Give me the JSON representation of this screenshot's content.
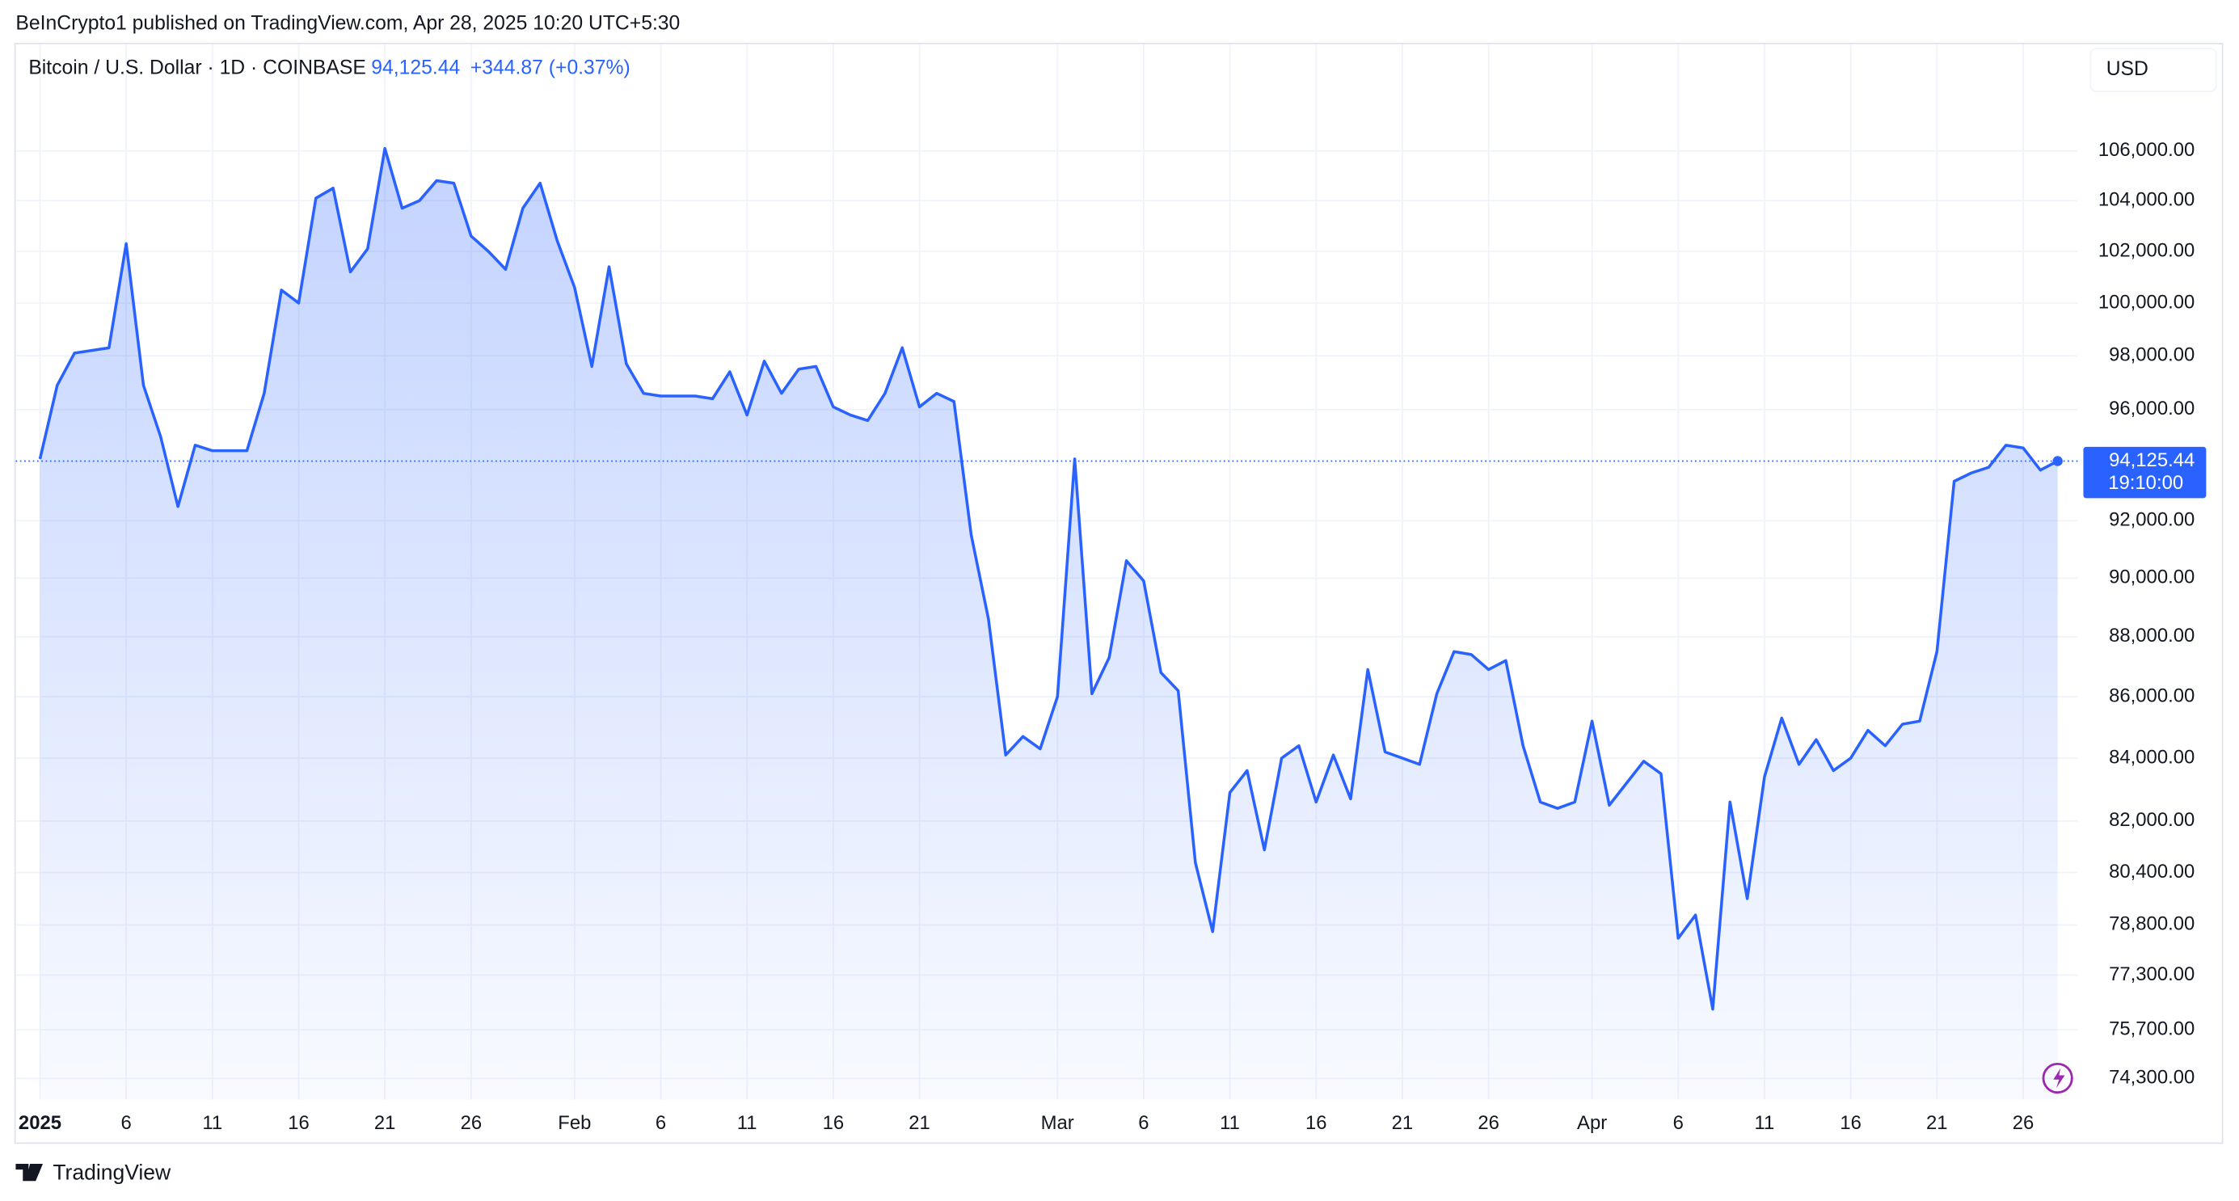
{
  "header": {
    "published": "BeInCrypto1 published on TradingView.com, Apr 28, 2025 10:20 UTC+5:30",
    "brand": "TradingView"
  },
  "chart_data": {
    "type": "line",
    "symbol": "Bitcoin / U.S. Dollar · 1D · COINBASE",
    "legend_price": "94,125.44",
    "legend_change": "+344.87 (+0.37%)",
    "currency": "USD",
    "last_price_label": "94,125.44",
    "countdown": "19:10:00",
    "color": "#2962ff",
    "log_scale": true,
    "grid": true,
    "x": [
      "2025-01-01",
      "2025-01-02",
      "2025-01-03",
      "2025-01-04",
      "2025-01-05",
      "2025-01-06",
      "2025-01-07",
      "2025-01-08",
      "2025-01-09",
      "2025-01-10",
      "2025-01-11",
      "2025-01-12",
      "2025-01-13",
      "2025-01-14",
      "2025-01-15",
      "2025-01-16",
      "2025-01-17",
      "2025-01-18",
      "2025-01-19",
      "2025-01-20",
      "2025-01-21",
      "2025-01-22",
      "2025-01-23",
      "2025-01-24",
      "2025-01-25",
      "2025-01-26",
      "2025-01-27",
      "2025-01-28",
      "2025-01-29",
      "2025-01-30",
      "2025-01-31",
      "2025-02-01",
      "2025-02-02",
      "2025-02-03",
      "2025-02-04",
      "2025-02-05",
      "2025-02-06",
      "2025-02-07",
      "2025-02-08",
      "2025-02-09",
      "2025-02-10",
      "2025-02-11",
      "2025-02-12",
      "2025-02-13",
      "2025-02-14",
      "2025-02-15",
      "2025-02-16",
      "2025-02-17",
      "2025-02-18",
      "2025-02-19",
      "2025-02-20",
      "2025-02-21",
      "2025-02-22",
      "2025-02-23",
      "2025-02-24",
      "2025-02-25",
      "2025-02-26",
      "2025-02-27",
      "2025-02-28",
      "2025-03-01",
      "2025-03-02",
      "2025-03-03",
      "2025-03-04",
      "2025-03-05",
      "2025-03-06",
      "2025-03-07",
      "2025-03-08",
      "2025-03-09",
      "2025-03-10",
      "2025-03-11",
      "2025-03-12",
      "2025-03-13",
      "2025-03-14",
      "2025-03-15",
      "2025-03-16",
      "2025-03-17",
      "2025-03-18",
      "2025-03-19",
      "2025-03-20",
      "2025-03-21",
      "2025-03-22",
      "2025-03-23",
      "2025-03-24",
      "2025-03-25",
      "2025-03-26",
      "2025-03-27",
      "2025-03-28",
      "2025-03-29",
      "2025-03-30",
      "2025-03-31",
      "2025-04-01",
      "2025-04-02",
      "2025-04-03",
      "2025-04-04",
      "2025-04-05",
      "2025-04-06",
      "2025-04-07",
      "2025-04-08",
      "2025-04-09",
      "2025-04-10",
      "2025-04-11",
      "2025-04-12",
      "2025-04-13",
      "2025-04-14",
      "2025-04-15",
      "2025-04-16",
      "2025-04-17",
      "2025-04-18",
      "2025-04-19",
      "2025-04-20",
      "2025-04-21",
      "2025-04-22",
      "2025-04-23",
      "2025-04-24",
      "2025-04-25",
      "2025-04-26",
      "2025-04-27",
      "2025-04-28"
    ],
    "values": [
      94200,
      96900,
      98100,
      98200,
      98300,
      102300,
      96900,
      95000,
      92500,
      94700,
      94500,
      94500,
      94500,
      96600,
      100500,
      100000,
      104100,
      104500,
      101200,
      102100,
      106100,
      103700,
      104000,
      104800,
      104700,
      102600,
      102000,
      101300,
      103700,
      104700,
      102400,
      100600,
      97600,
      101400,
      97700,
      96600,
      96500,
      96500,
      96500,
      96400,
      97400,
      95800,
      97800,
      96600,
      97500,
      97600,
      96100,
      95800,
      95600,
      96600,
      98300,
      96100,
      96600,
      96300,
      91500,
      88600,
      84100,
      84700,
      84300,
      86000,
      94200,
      86100,
      87300,
      90600,
      89900,
      86800,
      86200,
      80700,
      78600,
      82900,
      83600,
      81100,
      84000,
      84400,
      82600,
      84100,
      82700,
      86900,
      84200,
      84000,
      83800,
      86100,
      87500,
      87400,
      86900,
      87200,
      84400,
      82600,
      82400,
      82600,
      85200,
      82500,
      83200,
      83900,
      83500,
      78400,
      79100,
      76300,
      82600,
      79600,
      83400,
      85300,
      83800,
      84600,
      83600,
      84000,
      84900,
      84400,
      85100,
      85200,
      87500,
      93400,
      93700,
      93900,
      94700,
      94600,
      93800,
      94125.44
    ],
    "xlim": [
      "2025-01-01",
      "2025-04-28"
    ],
    "xticks": [
      {
        "value": "2025-01-01",
        "label": "2025"
      },
      {
        "value": "2025-01-06",
        "label": "6"
      },
      {
        "value": "2025-01-11",
        "label": "11"
      },
      {
        "value": "2025-01-16",
        "label": "16"
      },
      {
        "value": "2025-01-21",
        "label": "21"
      },
      {
        "value": "2025-01-26",
        "label": "26"
      },
      {
        "value": "2025-02-01",
        "label": "Feb"
      },
      {
        "value": "2025-02-06",
        "label": "6"
      },
      {
        "value": "2025-02-11",
        "label": "11"
      },
      {
        "value": "2025-02-16",
        "label": "16"
      },
      {
        "value": "2025-02-21",
        "label": "21"
      },
      {
        "value": "2025-03-01",
        "label": "Mar"
      },
      {
        "value": "2025-03-06",
        "label": "6"
      },
      {
        "value": "2025-03-11",
        "label": "11"
      },
      {
        "value": "2025-03-16",
        "label": "16"
      },
      {
        "value": "2025-03-21",
        "label": "21"
      },
      {
        "value": "2025-03-26",
        "label": "26"
      },
      {
        "value": "2025-04-01",
        "label": "Apr"
      },
      {
        "value": "2025-04-06",
        "label": "6"
      },
      {
        "value": "2025-04-11",
        "label": "11"
      },
      {
        "value": "2025-04-16",
        "label": "16"
      },
      {
        "value": "2025-04-21",
        "label": "21"
      },
      {
        "value": "2025-04-26",
        "label": "26"
      }
    ],
    "ylim": [
      73700,
      110000
    ],
    "yticks": [
      {
        "value": 106000,
        "label": "106,000.00"
      },
      {
        "value": 104000,
        "label": "104,000.00"
      },
      {
        "value": 102000,
        "label": "102,000.00"
      },
      {
        "value": 100000,
        "label": "100,000.00"
      },
      {
        "value": 98000,
        "label": "98,000.00"
      },
      {
        "value": 96000,
        "label": "96,000.00"
      },
      {
        "value": 92000,
        "label": "92,000.00"
      },
      {
        "value": 90000,
        "label": "90,000.00"
      },
      {
        "value": 88000,
        "label": "88,000.00"
      },
      {
        "value": 86000,
        "label": "86,000.00"
      },
      {
        "value": 84000,
        "label": "84,000.00"
      },
      {
        "value": 82000,
        "label": "82,000.00"
      },
      {
        "value": 80400,
        "label": "80,400.00"
      },
      {
        "value": 78800,
        "label": "78,800.00"
      },
      {
        "value": 77300,
        "label": "77,300.00"
      },
      {
        "value": 75700,
        "label": "75,700.00"
      },
      {
        "value": 74300,
        "label": "74,300.00"
      }
    ]
  }
}
